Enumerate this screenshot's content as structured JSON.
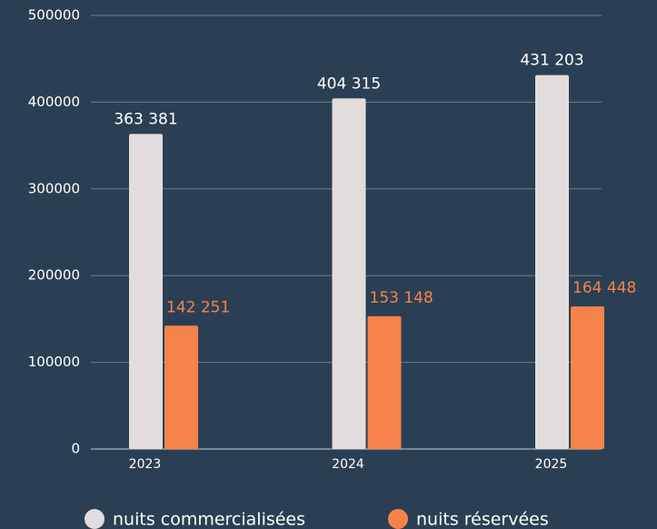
{
  "chart_data": {
    "type": "bar",
    "categories": [
      "2023",
      "2024",
      "2025"
    ],
    "series": [
      {
        "name": "nuits commercialisées",
        "color": "#e2dddc",
        "values": [
          363381,
          404315,
          431203
        ],
        "value_labels": [
          "363 381",
          "404 315",
          "431 203"
        ]
      },
      {
        "name": "nuits réservées",
        "color": "#f5834a",
        "values": [
          142251,
          153148,
          164448
        ],
        "value_labels": [
          "142 251",
          "153 148",
          "164 448"
        ]
      }
    ],
    "ylim": [
      0,
      500000
    ],
    "yticks": [
      0,
      100000,
      200000,
      300000,
      400000,
      500000
    ],
    "grid": true,
    "legend": "bottom"
  }
}
